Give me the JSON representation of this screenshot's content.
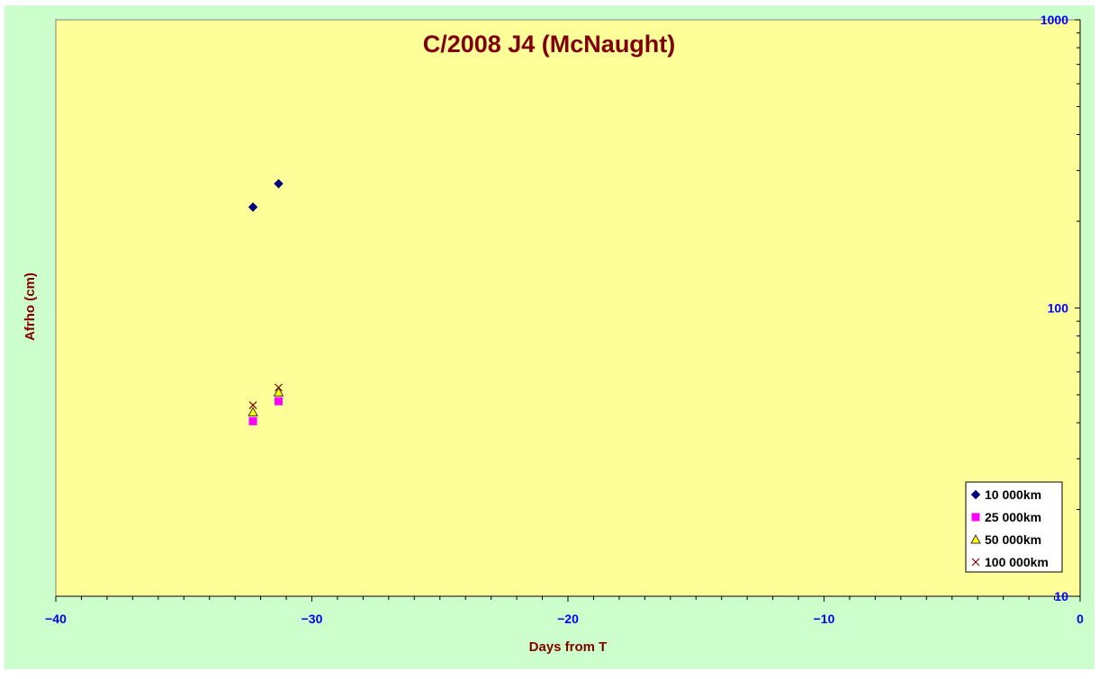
{
  "chart_data": {
    "type": "scatter",
    "title": "C/2008 J4 (McNaught)",
    "xlabel": "Days from T",
    "ylabel": "Afrho (cm)",
    "xlim": [
      -40,
      0
    ],
    "ylim": [
      10,
      1000
    ],
    "yscale": "log",
    "x_ticks": [
      -40,
      -30,
      -20,
      -10,
      0
    ],
    "y_ticks": [
      10,
      100,
      1000
    ],
    "y_axis_side": "right",
    "legend_position": "bottom-right",
    "series": [
      {
        "name": "10 000km",
        "marker": "diamond",
        "color": "#00007f",
        "points": [
          [
            -32.3,
            224
          ],
          [
            -31.3,
            270
          ]
        ]
      },
      {
        "name": "25 000km",
        "marker": "square",
        "color": "#ff00ff",
        "points": [
          [
            -32.3,
            40.5
          ],
          [
            -31.3,
            47.5
          ]
        ]
      },
      {
        "name": "50 000km",
        "marker": "triangle",
        "color": "#ffff00",
        "points": [
          [
            -32.3,
            43.5
          ],
          [
            -31.3,
            51
          ]
        ]
      },
      {
        "name": "100 000km",
        "marker": "x",
        "color": "#800000",
        "points": [
          [
            -32.3,
            46
          ],
          [
            -31.3,
            53
          ]
        ]
      }
    ]
  },
  "colors": {
    "background": "#ccffcc",
    "plot_area": "#ffff99",
    "title": "#800000",
    "axis_title": "#800000",
    "tick_labels": "#0000ff"
  }
}
